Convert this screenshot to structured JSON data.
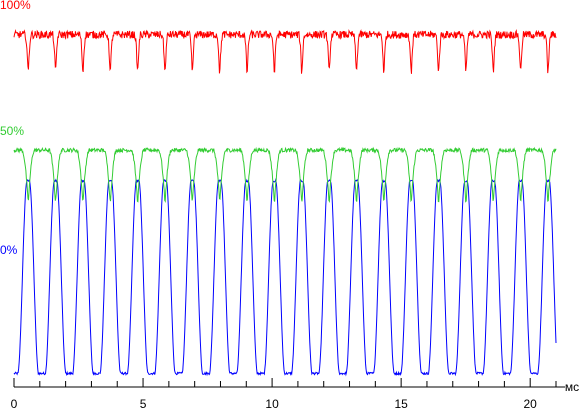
{
  "chart_data": {
    "type": "line",
    "title": "",
    "xlabel": "мс",
    "ylabel": "",
    "xlim": [
      0,
      21
    ],
    "x_ticks": [
      0,
      5,
      10,
      15,
      20
    ],
    "x_tick_labels": [
      "0",
      "5",
      "10",
      "15",
      "20"
    ],
    "minor_tick_step": 1,
    "grid": false,
    "period_ms": 1.06,
    "first_pulse_center_ms": 0.55,
    "pulse_count": 20,
    "level_labels": [
      {
        "text": "100%",
        "color": "#ff0000"
      },
      {
        "text": "50%",
        "color": "#33cc33"
      },
      {
        "text": "0%",
        "color": "#0000ff"
      }
    ],
    "series": [
      {
        "color": "#ff0000",
        "role": "top trace",
        "baseline_level": 0.91,
        "dip_min_level": 0.8
      },
      {
        "color": "#33cc33",
        "role": "middle trace",
        "baseline_level": 0.61,
        "dip_min_level": 0.47
      },
      {
        "color": "#0000ff",
        "role": "bottom trace",
        "low_level": 0.03,
        "pulse_peak_level": 0.53
      }
    ]
  }
}
